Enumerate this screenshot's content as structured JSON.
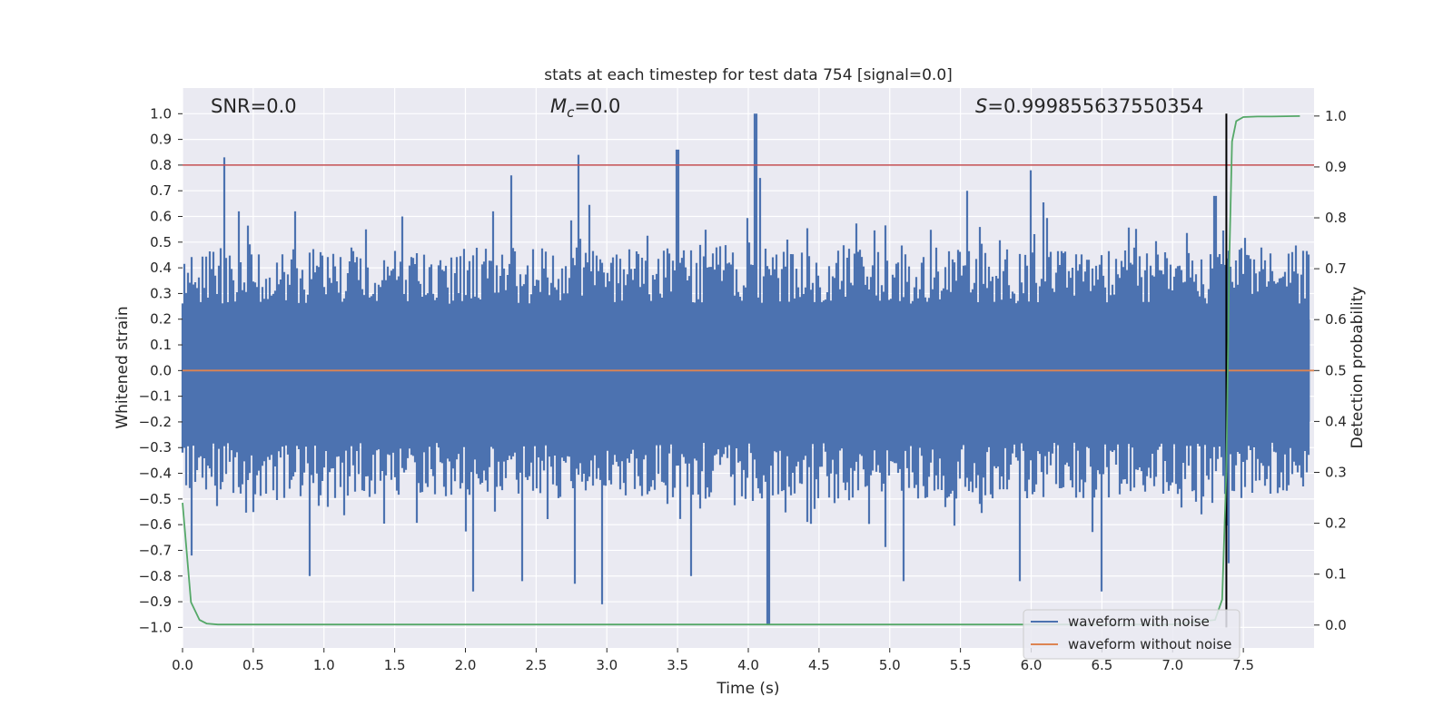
{
  "chart_data": {
    "type": "line",
    "title": "stats at each timestep for test data 754 [signal=0.0]",
    "xlabel": "Time (s)",
    "ylabel": "Whitened strain",
    "y2label": "Detection probability",
    "xlim": [
      0.0,
      8.0
    ],
    "ylim": [
      -1.08,
      1.1
    ],
    "y2lim": [
      -0.045,
      1.055
    ],
    "xticks": [
      "0.0",
      "0.5",
      "1.0",
      "1.5",
      "2.0",
      "2.5",
      "3.0",
      "3.5",
      "4.0",
      "4.5",
      "5.0",
      "5.5",
      "6.0",
      "6.5",
      "7.0",
      "7.5"
    ],
    "xtick_values": [
      0.0,
      0.5,
      1.0,
      1.5,
      2.0,
      2.5,
      3.0,
      3.5,
      4.0,
      4.5,
      5.0,
      5.5,
      6.0,
      6.5,
      7.0,
      7.5
    ],
    "yticks": [
      "1.0",
      "0.9",
      "0.8",
      "0.7",
      "0.6",
      "0.5",
      "0.4",
      "0.3",
      "0.2",
      "0.1",
      "0.0",
      "−0.1",
      "−0.2",
      "−0.3",
      "−0.4",
      "−0.5",
      "−0.6",
      "−0.7",
      "−0.8",
      "−0.9",
      "−1.0"
    ],
    "ytick_values": [
      1.0,
      0.9,
      0.8,
      0.7,
      0.6,
      0.5,
      0.4,
      0.3,
      0.2,
      0.1,
      0.0,
      -0.1,
      -0.2,
      -0.3,
      -0.4,
      -0.5,
      -0.6,
      -0.7,
      -0.8,
      -0.9,
      -1.0
    ],
    "y2ticks": [
      "1.0",
      "0.9",
      "0.8",
      "0.7",
      "0.6",
      "0.5",
      "0.4",
      "0.3",
      "0.2",
      "0.1",
      "0.0"
    ],
    "y2tick_values": [
      1.0,
      0.9,
      0.8,
      0.7,
      0.6,
      0.5,
      0.4,
      0.3,
      0.2,
      0.1,
      0.0
    ],
    "grid": true,
    "legend_placement": "lower-right",
    "annotations": {
      "snr": "SNR=0.0",
      "mc_symbol": "M",
      "mc_sub": "c",
      "mc_value": "=0.0",
      "s_symbol": "S",
      "s_value": "=0.999855637550354"
    },
    "series": [
      {
        "name": "waveform with noise",
        "color": "#4c72b0",
        "envelope_note": "dense noise; peak values",
        "peaks": [
          [
            0.3,
            0.83
          ],
          [
            0.4,
            0.62
          ],
          [
            0.8,
            0.62
          ],
          [
            1.3,
            0.55
          ],
          [
            1.55,
            0.6
          ],
          [
            2.2,
            0.62
          ],
          [
            2.32,
            0.76
          ],
          [
            2.8,
            0.84
          ],
          [
            3.5,
            0.86
          ],
          [
            4.05,
            1.0
          ],
          [
            4.08,
            0.75
          ],
          [
            5.55,
            0.7
          ],
          [
            6.0,
            0.78
          ],
          [
            7.3,
            0.68
          ]
        ],
        "troughs": [
          [
            0.06,
            -0.72
          ],
          [
            0.9,
            -0.8
          ],
          [
            2.05,
            -0.86
          ],
          [
            2.4,
            -0.82
          ],
          [
            2.77,
            -0.83
          ],
          [
            2.97,
            -0.91
          ],
          [
            3.6,
            -0.8
          ],
          [
            4.14,
            -0.99
          ],
          [
            5.1,
            -0.82
          ],
          [
            5.92,
            -0.82
          ],
          [
            6.5,
            -0.86
          ],
          [
            7.4,
            -0.75
          ]
        ]
      },
      {
        "name": "waveform without noise",
        "color": "#dd8452",
        "x": [
          0.0,
          8.0
        ],
        "y": [
          0.0,
          0.0
        ]
      },
      {
        "name": "detection probability",
        "color": "#55a868",
        "axis": "right",
        "x": [
          0.0,
          0.06,
          0.12,
          0.17,
          0.25,
          0.4,
          1.0,
          2.0,
          3.0,
          4.0,
          5.0,
          6.0,
          7.0,
          7.3,
          7.35,
          7.38,
          7.4,
          7.42,
          7.45,
          7.5,
          7.6,
          7.7,
          7.9
        ],
        "y": [
          0.24,
          0.045,
          0.01,
          0.003,
          0.001,
          0.001,
          0.001,
          0.001,
          0.001,
          0.001,
          0.001,
          0.001,
          0.001,
          0.01,
          0.05,
          0.3,
          0.7,
          0.95,
          0.99,
          0.998,
          0.999,
          0.999,
          0.9999
        ]
      }
    ],
    "threshold_line": {
      "y": 0.8,
      "color": "#c44e52"
    },
    "marker_line": {
      "x": 7.38,
      "y_from": -1.0,
      "y_to": 1.0,
      "color": "#000000"
    }
  },
  "legend": {
    "items": [
      {
        "label": "waveform with noise",
        "color": "#4c72b0"
      },
      {
        "label": "waveform without noise",
        "color": "#dd8452"
      }
    ]
  }
}
